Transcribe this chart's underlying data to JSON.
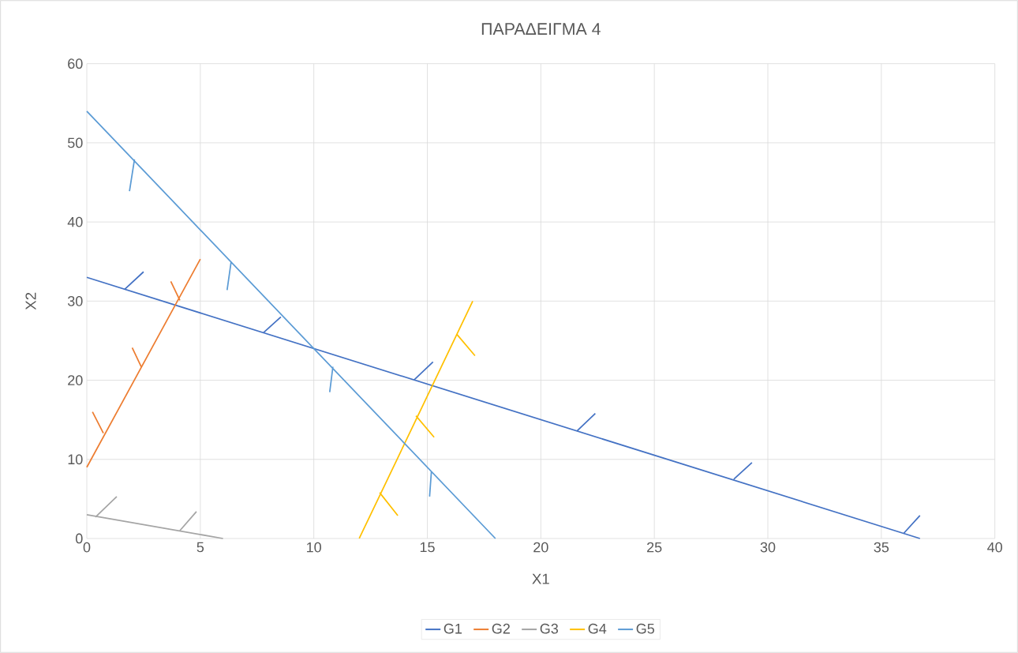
{
  "chart_data": {
    "type": "line",
    "title": "ΠΑΡΑΔΕΙΓΜΑ 4",
    "xlabel": "X1",
    "ylabel": "X2",
    "xlim": [
      0,
      40
    ],
    "ylim": [
      0,
      60
    ],
    "xticks": [
      0,
      5,
      10,
      15,
      20,
      25,
      30,
      35,
      40
    ],
    "yticks": [
      0,
      10,
      20,
      30,
      40,
      50,
      60
    ],
    "grid": true,
    "legend": "bottom",
    "marker": "none",
    "line_style": "solid",
    "series": [
      {
        "name": "G1",
        "color": "#4472c4",
        "x": [
          0,
          36.7,
          null,
          1.67,
          2.5,
          null,
          7.78,
          8.55,
          null,
          14.4,
          15.25,
          null,
          21.6,
          22.4,
          null,
          28.5,
          29.3,
          null,
          36.0,
          36.7
        ],
        "values": [
          33,
          0,
          null,
          31.5,
          33.7,
          null,
          26.0,
          28.0,
          null,
          20.0,
          22.3,
          null,
          13.6,
          15.8,
          null,
          7.5,
          9.6,
          null,
          0.7,
          2.9
        ]
      },
      {
        "name": "G2",
        "color": "#ed7d31",
        "x": [
          0,
          5,
          null,
          0.25,
          0.73,
          null,
          2.0,
          2.4,
          null,
          3.7,
          4.1
        ],
        "values": [
          9,
          35.3,
          null,
          16.0,
          13.3,
          null,
          24.1,
          21.7,
          null,
          32.5,
          30.1
        ]
      },
      {
        "name": "G3",
        "color": "#a5a5a5",
        "x": [
          0,
          6,
          null,
          0.38,
          1.32,
          null,
          4.07,
          4.83
        ],
        "values": [
          3,
          0,
          null,
          2.7,
          5.3,
          null,
          0.9,
          3.4
        ]
      },
      {
        "name": "G4",
        "color": "#ffc000",
        "x": [
          12,
          17,
          null,
          12.9,
          13.7,
          null,
          14.5,
          15.3,
          null,
          16.3,
          17.1
        ],
        "values": [
          0,
          30,
          null,
          5.8,
          2.9,
          null,
          15.5,
          12.8,
          null,
          25.8,
          23.1
        ]
      },
      {
        "name": "G5",
        "color": "#5b9bd5",
        "x": [
          0,
          18,
          null,
          2.1,
          1.88,
          null,
          6.36,
          6.18,
          null,
          10.84,
          10.7,
          null,
          15.18,
          15.1
        ],
        "values": [
          54,
          0,
          null,
          47.9,
          43.9,
          null,
          35.0,
          31.4,
          null,
          21.7,
          18.5,
          null,
          8.5,
          5.3
        ]
      }
    ]
  }
}
